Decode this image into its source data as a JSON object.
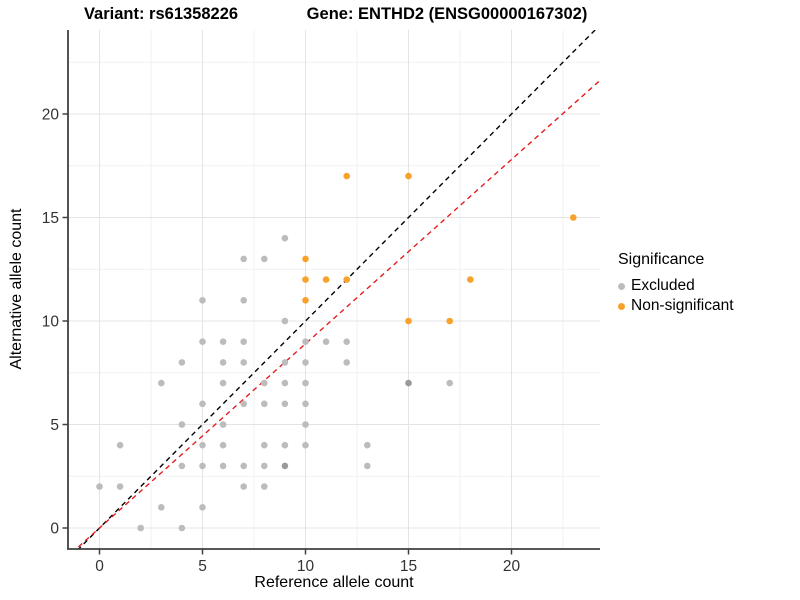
{
  "titles": {
    "left": "Variant: rs61358226",
    "right": "Gene: ENTHD2 (ENSG00000167302)"
  },
  "legend": {
    "title": "Significance"
  },
  "colors": {
    "excluded": "#BCBCBC",
    "excluded_dark": "#9A9A9A",
    "non_significant": "#F9A22B",
    "identity_line": "#000000",
    "ratio_line": "#E41A1C",
    "grid_major": "#E4E4E4",
    "grid_minor": "#F1F1F1",
    "axis_line": "#404040",
    "tick_label": "#333333"
  },
  "chart_data": {
    "type": "scatter",
    "title": "Variant: rs61358226 / Gene: ENTHD2 (ENSG00000167302)",
    "xlabel": "Reference allele count",
    "ylabel": "Alternative allele count",
    "xlim": [
      -1.5,
      24.3
    ],
    "ylim": [
      -1.0,
      24.1
    ],
    "x_ticks": [
      0,
      5,
      10,
      15,
      20
    ],
    "y_ticks": [
      0,
      5,
      10,
      15,
      20
    ],
    "grid": "major+minor",
    "legend_position": "right",
    "series": [
      {
        "name": "Excluded",
        "color": "#BCBCBC",
        "points": [
          [
            2,
            0
          ],
          [
            4,
            0
          ],
          [
            3,
            1
          ],
          [
            5,
            1
          ],
          [
            0,
            2
          ],
          [
            1,
            2
          ],
          [
            7,
            2
          ],
          [
            8,
            2
          ],
          [
            4,
            3
          ],
          [
            5,
            3
          ],
          [
            6,
            3
          ],
          [
            7,
            3
          ],
          [
            8,
            3
          ],
          [
            9,
            3,
            "d"
          ],
          [
            13,
            3
          ],
          [
            1,
            4
          ],
          [
            5,
            4
          ],
          [
            6,
            4
          ],
          [
            8,
            4
          ],
          [
            9,
            4
          ],
          [
            10,
            4
          ],
          [
            13,
            4
          ],
          [
            4,
            5
          ],
          [
            6,
            5
          ],
          [
            10,
            5
          ],
          [
            5,
            6
          ],
          [
            7,
            6
          ],
          [
            8,
            6
          ],
          [
            9,
            6
          ],
          [
            10,
            6
          ],
          [
            3,
            7
          ],
          [
            6,
            7
          ],
          [
            8,
            7
          ],
          [
            9,
            7
          ],
          [
            10,
            7
          ],
          [
            15,
            7,
            "d"
          ],
          [
            17,
            7
          ],
          [
            4,
            8
          ],
          [
            6,
            8
          ],
          [
            7,
            8
          ],
          [
            9,
            8
          ],
          [
            10,
            8
          ],
          [
            12,
            8
          ],
          [
            5,
            9
          ],
          [
            6,
            9
          ],
          [
            7,
            9
          ],
          [
            10,
            9
          ],
          [
            11,
            9
          ],
          [
            12,
            9
          ],
          [
            9,
            10
          ],
          [
            5,
            11
          ],
          [
            7,
            11
          ],
          [
            7,
            13
          ],
          [
            8,
            13
          ],
          [
            9,
            14
          ]
        ]
      },
      {
        "name": "Non-significant",
        "color": "#F9A22B",
        "points": [
          [
            15,
            10
          ],
          [
            17,
            10
          ],
          [
            10,
            11
          ],
          [
            10,
            12
          ],
          [
            11,
            12
          ],
          [
            12,
            12
          ],
          [
            18,
            12
          ],
          [
            10,
            13
          ],
          [
            23,
            15
          ],
          [
            12,
            17
          ],
          [
            15,
            17
          ]
        ]
      }
    ],
    "lines": [
      {
        "name": "identity-line",
        "slope": 1,
        "intercept": 0,
        "color": "#000000",
        "dash": "5,4"
      },
      {
        "name": "expected-ratio-line",
        "slope": 0.89,
        "intercept": 0,
        "color": "#E41A1C",
        "dash": "5,4"
      }
    ]
  }
}
